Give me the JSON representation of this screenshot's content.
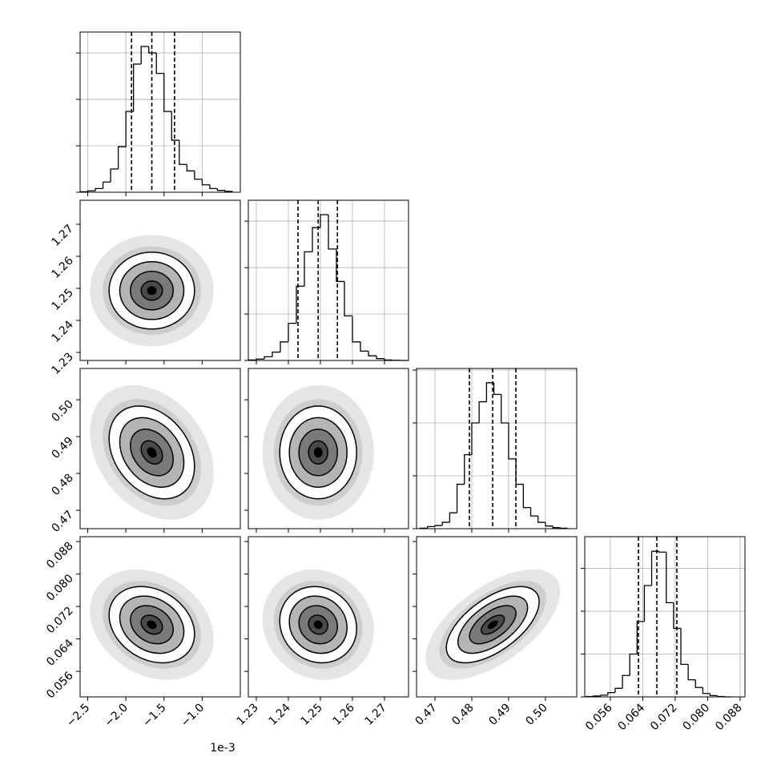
{
  "chart_data": {
    "type": "corner",
    "offset_label": "1e-3",
    "contour_levels": [
      0.5,
      1,
      1.5,
      2
    ],
    "grid": true,
    "color": "#000000",
    "variables": [
      {
        "xlim": [
          -0.0026,
          -0.0005
        ],
        "ticks": [
          {
            "value": -0.0025,
            "label": "−2.5"
          },
          {
            "value": -0.002,
            "label": "−2.0"
          },
          {
            "value": -0.0015,
            "label": "−1.5"
          },
          {
            "value": -0.001,
            "label": "−1.0"
          }
        ],
        "bins": [
          -0.0026,
          -0.0025,
          -0.0024,
          -0.0023,
          -0.0022,
          -0.0021,
          -0.002,
          -0.0019,
          -0.0018,
          -0.0017,
          -0.0016,
          -0.0015,
          -0.0014,
          -0.0013,
          -0.0012,
          -0.0011,
          -0.001,
          -0.0009,
          -0.0008,
          -0.0007,
          -0.0006
        ],
        "counts": [
          5,
          15,
          40,
          110,
          250,
          490,
          870,
          1380,
          1570,
          1500,
          1280,
          870,
          560,
          300,
          230,
          140,
          80,
          40,
          20,
          10
        ],
        "hist_ylim": [
          0,
          1725
        ],
        "hist_yticks": [
          0,
          500,
          1000,
          1500
        ],
        "quantiles": [
          -0.001926,
          -0.00166,
          -0.001362
        ],
        "mean": -0.00166,
        "sd": 0.00028
      },
      {
        "xlim": [
          1.2275,
          1.2775
        ],
        "ticks": [
          1.23,
          1.24,
          1.25,
          1.26,
          1.27
        ],
        "bins": [
          1.2275,
          1.23,
          1.2325,
          1.235,
          1.2375,
          1.24,
          1.2425,
          1.245,
          1.2475,
          1.25,
          1.2525,
          1.255,
          1.2575,
          1.26,
          1.2625,
          1.265,
          1.2675,
          1.27,
          1.2725,
          1.275,
          1.2775
        ],
        "counts": [
          5,
          15,
          40,
          90,
          200,
          400,
          800,
          1170,
          1430,
          1570,
          1200,
          850,
          480,
          200,
          100,
          50,
          20,
          5,
          2,
          0
        ],
        "hist_ylim": [
          0,
          1725
        ],
        "hist_yticks": [
          0,
          500,
          1000,
          1500
        ],
        "quantiles": [
          1.243,
          1.2493,
          1.2553
        ],
        "mean": 1.2493,
        "sd": 0.006
      },
      {
        "xlim": [
          0.465,
          0.5085
        ],
        "ticks": [
          0.47,
          0.48,
          0.49,
          {
            "value": 0.5,
            "label": "0.50"
          }
        ],
        "bins": [
          0.466,
          0.468,
          0.47,
          0.472,
          0.474,
          0.476,
          0.478,
          0.48,
          0.482,
          0.484,
          0.486,
          0.488,
          0.49,
          0.492,
          0.494,
          0.496,
          0.498,
          0.5,
          0.502,
          0.504,
          0.506
        ],
        "counts": [
          5,
          20,
          30,
          60,
          150,
          420,
          700,
          1000,
          1200,
          1380,
          1270,
          1000,
          660,
          420,
          200,
          120,
          60,
          25,
          10,
          5
        ],
        "hist_ylim": [
          0,
          1515
        ],
        "hist_yticks": [
          0,
          500,
          1000,
          1500
        ],
        "quantiles": [
          0.47936,
          0.48567,
          0.49198
        ],
        "mean": 0.4857,
        "sd": 0.0063
      },
      {
        "xlim": [
          0.0497,
          0.0892
        ],
        "ticks": [
          0.056,
          0.064,
          0.072,
          {
            "value": 0.08,
            "label": "0.080"
          },
          0.088
        ],
        "bins": [
          0.05,
          0.0518,
          0.0536,
          0.0554,
          0.0572,
          0.059,
          0.0608,
          0.0626,
          0.0644,
          0.0662,
          0.068,
          0.0698,
          0.0716,
          0.0734,
          0.0752,
          0.077,
          0.0788,
          0.0806,
          0.0824,
          0.0842,
          0.086
        ],
        "counts": [
          5,
          10,
          20,
          50,
          100,
          250,
          500,
          880,
          1300,
          1700,
          1690,
          1100,
          800,
          380,
          200,
          110,
          40,
          15,
          5,
          0
        ],
        "hist_ylim": [
          0,
          1870
        ],
        "hist_yticks": [
          0,
          500,
          1000,
          1500
        ],
        "quantiles": [
          0.06293,
          0.06747,
          0.07241
        ],
        "mean": 0.0675,
        "sd": 0.0047
      }
    ],
    "correlations": [
      [
        1,
        0,
        -0.3,
        -0.25
      ],
      [
        0,
        1,
        0,
        -0.1
      ],
      [
        -0.3,
        0,
        1,
        0.6
      ],
      [
        -0.25,
        -0.1,
        0.6,
        1
      ]
    ]
  }
}
